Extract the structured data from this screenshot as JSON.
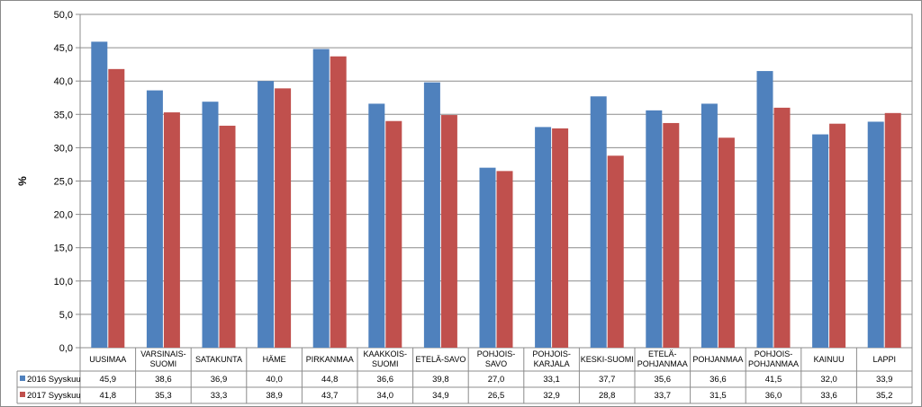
{
  "chart_data": {
    "type": "bar",
    "ylabel": "%",
    "ylim": [
      0,
      50
    ],
    "ytick_step": 5,
    "ytick_labels": [
      "0,0",
      "5,0",
      "10,0",
      "15,0",
      "20,0",
      "25,0",
      "30,0",
      "35,0",
      "40,0",
      "45,0",
      "50,0"
    ],
    "grid": true,
    "legend": "data-table",
    "categories": [
      "UUSIMAA",
      "VARSINAIS-\nSUOMI",
      "SATAKUNTA",
      "HÄME",
      "PIRKANMAA",
      "KAAKKOIS-\nSUOMI",
      "ETELÄ-SAVO",
      "POHJOIS-\nSAVO",
      "POHJOIS-\nKARJALA",
      "KESKI-SUOMI",
      "ETELÄ-\nPOHJANMAA",
      "POHJANMAA",
      "POHJOIS-\nPOHJANMAA",
      "KAINUU",
      "LAPPI"
    ],
    "series": [
      {
        "name": "2016 Syyskuu",
        "color": "#4f81bd",
        "values": [
          45.9,
          38.6,
          36.9,
          40.0,
          44.8,
          36.6,
          39.8,
          27.0,
          33.1,
          37.7,
          35.6,
          36.6,
          41.5,
          32.0,
          33.9
        ],
        "labels": [
          "45,9",
          "38,6",
          "36,9",
          "40,0",
          "44,8",
          "36,6",
          "39,8",
          "27,0",
          "33,1",
          "37,7",
          "35,6",
          "36,6",
          "41,5",
          "32,0",
          "33,9"
        ]
      },
      {
        "name": "2017 Syyskuu",
        "color": "#c0504d",
        "values": [
          41.8,
          35.3,
          33.3,
          38.9,
          43.7,
          34.0,
          34.9,
          26.5,
          32.9,
          28.8,
          33.7,
          31.5,
          36.0,
          33.6,
          35.2
        ],
        "labels": [
          "41,8",
          "35,3",
          "33,3",
          "38,9",
          "43,7",
          "34,0",
          "34,9",
          "26,5",
          "32,9",
          "28,8",
          "33,7",
          "31,5",
          "36,0",
          "33,6",
          "35,2"
        ]
      }
    ]
  }
}
